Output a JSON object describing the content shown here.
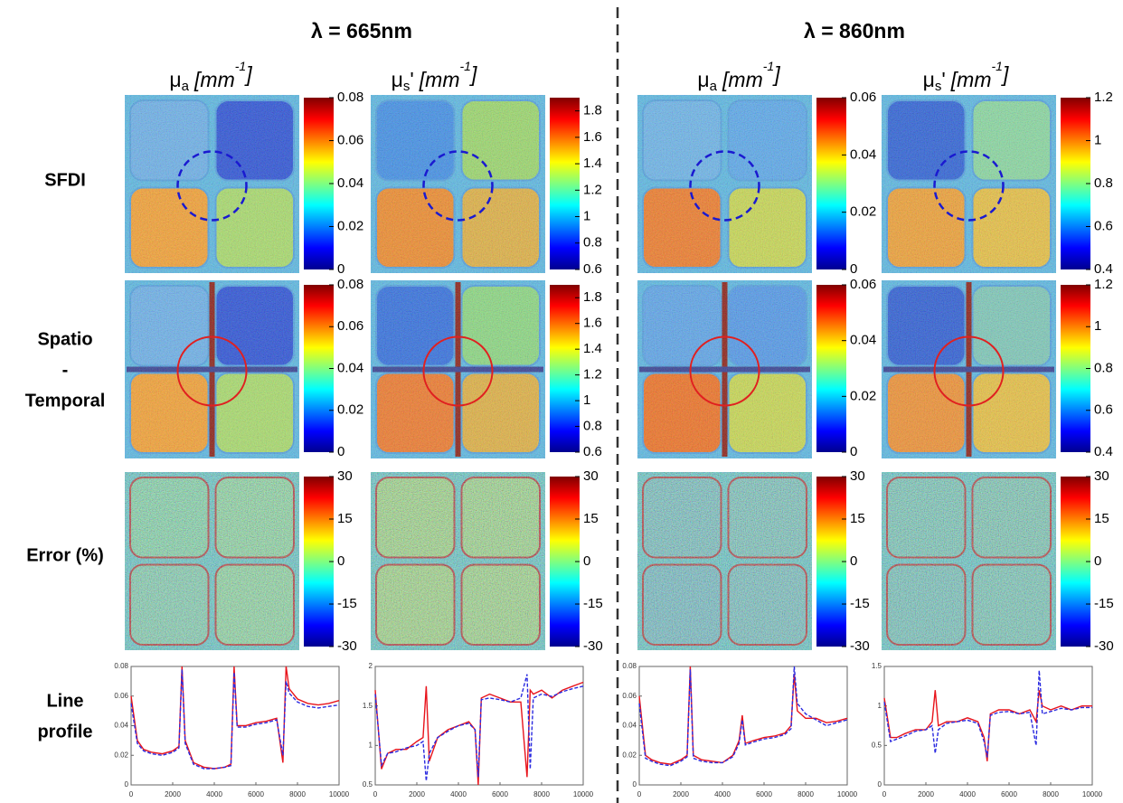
{
  "header": {
    "titles": [
      "λ = 665nm",
      "λ = 860nm"
    ]
  },
  "columns": [
    [
      {
        "text": "μ"
      },
      {
        "text": "a",
        "role": "sub"
      },
      {
        "text": "[mm",
        "role": "italic"
      },
      {
        "text": "-1",
        "role": "sup"
      },
      {
        "text": "]",
        "role": "italic"
      }
    ],
    [
      {
        "text": "μ"
      },
      {
        "text": "s",
        "role": "sub"
      },
      {
        "text": "'"
      },
      {
        "text": "[mm",
        "role": "italic"
      },
      {
        "text": "-1",
        "role": "sup"
      },
      {
        "text": "]",
        "role": "italic"
      }
    ],
    [
      {
        "text": "μ"
      },
      {
        "text": "a",
        "role": "sub"
      },
      {
        "text": "[mm",
        "role": "italic"
      },
      {
        "text": "-1",
        "role": "sup"
      },
      {
        "text": "]",
        "role": "italic"
      }
    ],
    [
      {
        "text": "μ"
      },
      {
        "text": "s",
        "role": "sub"
      },
      {
        "text": "'"
      },
      {
        "text": "[mm",
        "role": "italic"
      },
      {
        "text": "-1",
        "role": "sup"
      },
      {
        "text": "]",
        "role": "italic"
      }
    ]
  ],
  "row_labels": [
    [
      "SFDI"
    ],
    [
      "Spatio",
      "-",
      "Temporal"
    ],
    [
      "Error (%)"
    ],
    [
      "Line",
      "profile"
    ]
  ],
  "colorbars": [
    [
      {
        "lim": [
          0,
          0.08
        ],
        "ticks": [
          0,
          0.02,
          0.04,
          0.06,
          0.08
        ]
      },
      {
        "lim": [
          0.6,
          1.9
        ],
        "ticks": [
          0.6,
          0.8,
          1,
          1.2,
          1.4,
          1.6,
          1.8
        ]
      },
      {
        "lim": [
          0,
          0.06
        ],
        "ticks": [
          0,
          0.02,
          0.04,
          0.06
        ]
      },
      {
        "lim": [
          0.4,
          1.2
        ],
        "ticks": [
          0.4,
          0.6,
          0.8,
          1,
          1.2
        ]
      }
    ],
    [
      {
        "lim": [
          0,
          0.08
        ],
        "ticks": [
          0,
          0.02,
          0.04,
          0.06,
          0.08
        ]
      },
      {
        "lim": [
          0.6,
          1.9
        ],
        "ticks": [
          0.6,
          0.8,
          1,
          1.2,
          1.4,
          1.6,
          1.8
        ]
      },
      {
        "lim": [
          0,
          0.06
        ],
        "ticks": [
          0,
          0.02,
          0.04,
          0.06
        ]
      },
      {
        "lim": [
          0.4,
          1.2
        ],
        "ticks": [
          0.4,
          0.6,
          0.8,
          1,
          1.2
        ]
      }
    ],
    [
      {
        "lim": [
          -30,
          30
        ],
        "ticks": [
          -30,
          -15,
          0,
          15,
          30
        ]
      },
      {
        "lim": [
          -30,
          30
        ],
        "ticks": [
          -30,
          -15,
          0,
          15,
          30
        ]
      },
      {
        "lim": [
          -30,
          30
        ],
        "ticks": [
          -30,
          -15,
          0,
          15,
          30
        ]
      },
      {
        "lim": [
          -30,
          30
        ],
        "ticks": [
          -30,
          -15,
          0,
          15,
          30
        ]
      }
    ]
  ],
  "chart_data": [
    {
      "type": "line",
      "x": [
        0,
        300,
        600,
        1000,
        1500,
        2000,
        2300,
        2450,
        2600,
        3000,
        3500,
        4000,
        4500,
        4800,
        4950,
        5100,
        5500,
        6000,
        6500,
        7000,
        7300,
        7450,
        7600,
        8000,
        8500,
        9000,
        9500,
        10000
      ],
      "xlim": [
        0,
        10000
      ],
      "xticks": [
        0,
        2000,
        4000,
        6000,
        8000,
        10000
      ],
      "ylim": [
        0,
        0.08
      ],
      "yticks": [
        0,
        0.02,
        0.04,
        0.06,
        0.08
      ],
      "series": [
        {
          "color": "#e8141c",
          "values": [
            0.06,
            0.03,
            0.024,
            0.022,
            0.021,
            0.023,
            0.026,
            0.08,
            0.03,
            0.015,
            0.012,
            0.011,
            0.012,
            0.014,
            0.08,
            0.04,
            0.04,
            0.042,
            0.043,
            0.045,
            0.015,
            0.08,
            0.065,
            0.058,
            0.055,
            0.054,
            0.055,
            0.057
          ]
        },
        {
          "color": "#2a2ae0",
          "dash": true,
          "values": [
            0.055,
            0.028,
            0.023,
            0.021,
            0.02,
            0.022,
            0.025,
            0.078,
            0.028,
            0.014,
            0.011,
            0.011,
            0.012,
            0.013,
            0.076,
            0.039,
            0.039,
            0.041,
            0.042,
            0.044,
            0.02,
            0.07,
            0.062,
            0.056,
            0.053,
            0.052,
            0.053,
            0.054
          ]
        }
      ]
    },
    {
      "type": "line",
      "x": [
        0,
        300,
        600,
        1000,
        1500,
        2000,
        2300,
        2450,
        2600,
        3000,
        3500,
        4000,
        4500,
        4800,
        4950,
        5100,
        5500,
        6000,
        6500,
        7000,
        7300,
        7450,
        7600,
        8000,
        8500,
        9000,
        9500,
        10000
      ],
      "xlim": [
        0,
        10000
      ],
      "xticks": [
        0,
        2000,
        4000,
        6000,
        8000,
        10000
      ],
      "ylim": [
        0.5,
        2
      ],
      "yticks": [
        0.5,
        1,
        1.5,
        2
      ],
      "series": [
        {
          "color": "#e8141c",
          "values": [
            1.7,
            0.7,
            0.9,
            0.95,
            0.95,
            1.05,
            1.1,
            1.75,
            0.8,
            1.1,
            1.2,
            1.25,
            1.3,
            1.2,
            0.5,
            1.6,
            1.65,
            1.6,
            1.55,
            1.55,
            0.6,
            1.7,
            1.65,
            1.7,
            1.6,
            1.7,
            1.75,
            1.8
          ]
        },
        {
          "color": "#2a2ae0",
          "dash": true,
          "values": [
            1.65,
            0.75,
            0.9,
            0.92,
            0.97,
            1.0,
            1.05,
            0.55,
            0.9,
            1.1,
            1.18,
            1.25,
            1.28,
            1.2,
            0.6,
            1.58,
            1.6,
            1.58,
            1.55,
            1.6,
            1.9,
            0.7,
            1.6,
            1.65,
            1.62,
            1.68,
            1.72,
            1.75
          ]
        }
      ]
    },
    {
      "type": "line",
      "x": [
        0,
        300,
        600,
        1000,
        1500,
        2000,
        2300,
        2450,
        2600,
        3000,
        3500,
        4000,
        4500,
        4800,
        4950,
        5100,
        5500,
        6000,
        6500,
        7000,
        7300,
        7450,
        7600,
        8000,
        8500,
        9000,
        9500,
        10000
      ],
      "xlim": [
        0,
        10000
      ],
      "xticks": [
        0,
        2000,
        4000,
        6000,
        8000,
        10000
      ],
      "ylim": [
        0,
        0.08
      ],
      "yticks": [
        0,
        0.02,
        0.04,
        0.06,
        0.08
      ],
      "series": [
        {
          "color": "#e8141c",
          "values": [
            0.06,
            0.02,
            0.017,
            0.015,
            0.014,
            0.017,
            0.02,
            0.08,
            0.02,
            0.017,
            0.016,
            0.015,
            0.02,
            0.03,
            0.047,
            0.028,
            0.03,
            0.032,
            0.033,
            0.035,
            0.04,
            0.075,
            0.05,
            0.045,
            0.045,
            0.042,
            0.043,
            0.045
          ]
        },
        {
          "color": "#2a2ae0",
          "dash": true,
          "values": [
            0.055,
            0.018,
            0.016,
            0.014,
            0.013,
            0.016,
            0.019,
            0.078,
            0.018,
            0.016,
            0.015,
            0.015,
            0.019,
            0.028,
            0.044,
            0.027,
            0.029,
            0.031,
            0.032,
            0.034,
            0.038,
            0.08,
            0.055,
            0.048,
            0.044,
            0.04,
            0.042,
            0.044
          ]
        }
      ]
    },
    {
      "type": "line",
      "x": [
        0,
        300,
        600,
        1000,
        1500,
        2000,
        2300,
        2450,
        2600,
        3000,
        3500,
        4000,
        4500,
        4800,
        4950,
        5100,
        5500,
        6000,
        6500,
        7000,
        7300,
        7450,
        7600,
        8000,
        8500,
        9000,
        9500,
        10000
      ],
      "xlim": [
        0,
        10000
      ],
      "xticks": [
        0,
        2000,
        4000,
        6000,
        8000,
        10000
      ],
      "ylim": [
        0,
        1.5
      ],
      "yticks": [
        0,
        0.5,
        1,
        1.5
      ],
      "series": [
        {
          "color": "#e8141c",
          "values": [
            1.1,
            0.6,
            0.6,
            0.65,
            0.7,
            0.7,
            0.8,
            1.2,
            0.75,
            0.8,
            0.8,
            0.85,
            0.8,
            0.6,
            0.3,
            0.9,
            0.95,
            0.95,
            0.9,
            0.95,
            0.8,
            1.2,
            1.0,
            0.95,
            1.0,
            0.95,
            1.0,
            1.0
          ]
        },
        {
          "color": "#2a2ae0",
          "dash": true,
          "values": [
            1.05,
            0.55,
            0.58,
            0.62,
            0.68,
            0.7,
            0.75,
            0.4,
            0.7,
            0.78,
            0.8,
            0.82,
            0.78,
            0.55,
            0.35,
            0.88,
            0.92,
            0.93,
            0.9,
            0.92,
            0.5,
            1.45,
            0.9,
            0.93,
            0.97,
            0.95,
            0.98,
            0.98
          ]
        }
      ]
    }
  ]
}
